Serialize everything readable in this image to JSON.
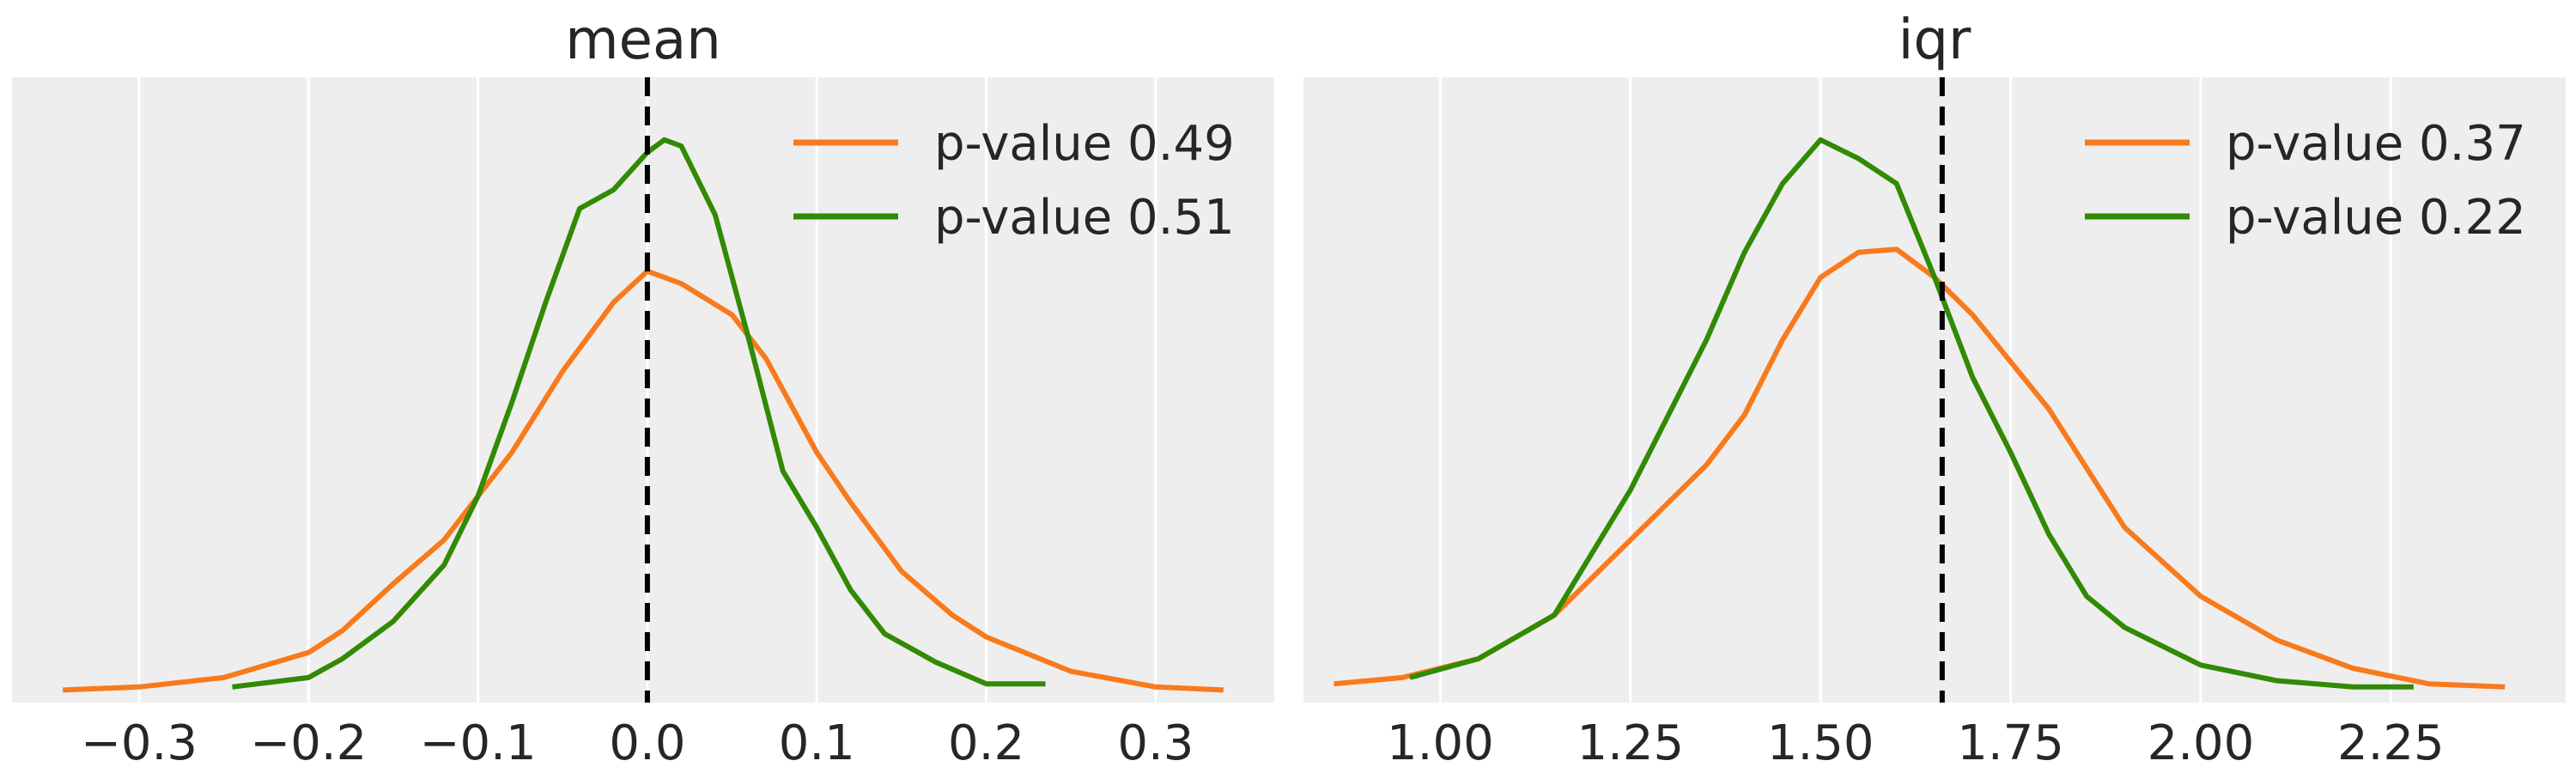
{
  "chart_data": [
    {
      "type": "line",
      "title": "mean",
      "xlim": [
        -0.375,
        0.37
      ],
      "ylim": [
        0,
        1.0
      ],
      "xticks": [
        -0.3,
        -0.2,
        -0.1,
        0.0,
        0.1,
        0.2,
        0.3
      ],
      "xtick_labels": [
        "−0.3",
        "−0.2",
        "−0.1",
        "0.0",
        "0.1",
        "0.2",
        "0.3"
      ],
      "reference_x": 0.0,
      "grid": true,
      "legend_position": "top-right",
      "series": [
        {
          "name": "p-value 0.49",
          "color": "#f97a1c",
          "x": [
            -0.345,
            -0.3,
            -0.25,
            -0.2,
            -0.18,
            -0.15,
            -0.12,
            -0.1,
            -0.08,
            -0.05,
            -0.02,
            0.0,
            0.02,
            0.05,
            0.07,
            0.1,
            0.12,
            0.15,
            0.18,
            0.2,
            0.25,
            0.3,
            0.34
          ],
          "y": [
            0.02,
            0.025,
            0.04,
            0.08,
            0.115,
            0.19,
            0.26,
            0.33,
            0.4,
            0.53,
            0.64,
            0.69,
            0.67,
            0.62,
            0.55,
            0.4,
            0.32,
            0.21,
            0.14,
            0.105,
            0.05,
            0.025,
            0.02
          ]
        },
        {
          "name": "p-value 0.51",
          "color": "#318a04",
          "x": [
            -0.245,
            -0.2,
            -0.18,
            -0.15,
            -0.12,
            -0.1,
            -0.08,
            -0.06,
            -0.04,
            -0.02,
            0.0,
            0.01,
            0.02,
            0.04,
            0.06,
            0.08,
            0.1,
            0.12,
            0.14,
            0.17,
            0.2,
            0.235
          ],
          "y": [
            0.025,
            0.04,
            0.07,
            0.13,
            0.22,
            0.33,
            0.48,
            0.64,
            0.79,
            0.82,
            0.88,
            0.9,
            0.89,
            0.78,
            0.58,
            0.37,
            0.28,
            0.18,
            0.11,
            0.065,
            0.03,
            0.03
          ]
        }
      ]
    },
    {
      "type": "line",
      "title": "iqr",
      "xlim": [
        0.82,
        2.48
      ],
      "ylim": [
        0,
        1.0
      ],
      "xticks": [
        1.0,
        1.25,
        1.5,
        1.75,
        2.0,
        2.25
      ],
      "xtick_labels": [
        "1.00",
        "1.25",
        "1.50",
        "1.75",
        "2.00",
        "2.25"
      ],
      "reference_x": 1.66,
      "grid": true,
      "legend_position": "top-right",
      "series": [
        {
          "name": "p-value 0.37",
          "color": "#f97a1c",
          "x": [
            0.86,
            0.95,
            1.05,
            1.15,
            1.25,
            1.35,
            1.4,
            1.45,
            1.5,
            1.55,
            1.6,
            1.65,
            1.7,
            1.8,
            1.9,
            2.0,
            2.1,
            2.2,
            2.3,
            2.4
          ],
          "y": [
            0.03,
            0.04,
            0.07,
            0.14,
            0.26,
            0.38,
            0.46,
            0.58,
            0.68,
            0.72,
            0.725,
            0.68,
            0.62,
            0.47,
            0.28,
            0.17,
            0.1,
            0.055,
            0.03,
            0.025
          ]
        },
        {
          "name": "p-value 0.22",
          "color": "#318a04",
          "x": [
            0.96,
            1.05,
            1.15,
            1.25,
            1.35,
            1.4,
            1.45,
            1.5,
            1.55,
            1.6,
            1.65,
            1.7,
            1.75,
            1.8,
            1.85,
            1.9,
            2.0,
            2.1,
            2.2,
            2.28
          ],
          "y": [
            0.04,
            0.07,
            0.14,
            0.34,
            0.58,
            0.72,
            0.83,
            0.9,
            0.87,
            0.83,
            0.68,
            0.52,
            0.4,
            0.27,
            0.17,
            0.12,
            0.06,
            0.035,
            0.025,
            0.025
          ]
        }
      ]
    }
  ]
}
